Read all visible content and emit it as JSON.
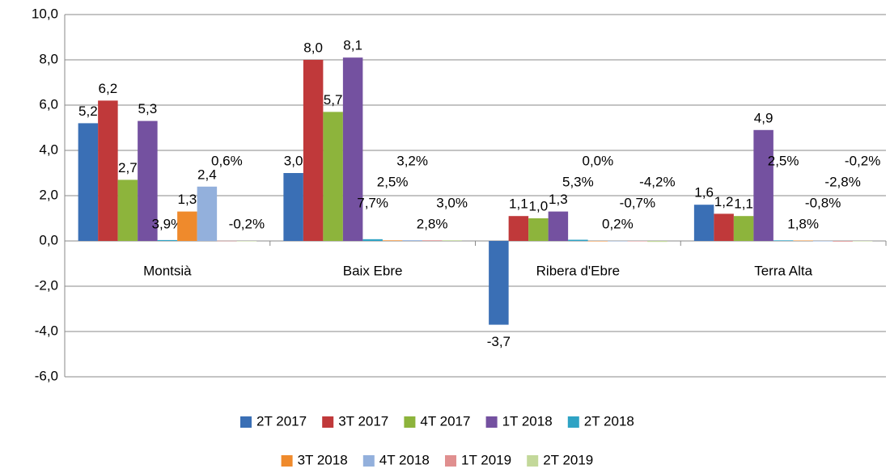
{
  "chart_data": {
    "type": "bar",
    "categories": [
      "Montsià",
      "Baix Ebre",
      "Ribera d'Ebre",
      "Terra Alta"
    ],
    "ylim": [
      -6,
      10
    ],
    "yticks": [
      {
        "value": -6,
        "label": "-6,0"
      },
      {
        "value": -4,
        "label": "-4,0"
      },
      {
        "value": -2,
        "label": "-2,0"
      },
      {
        "value": 0,
        "label": "0,0"
      },
      {
        "value": 2,
        "label": "2,0"
      },
      {
        "value": 4,
        "label": "4,0"
      },
      {
        "value": 6,
        "label": "6,0"
      },
      {
        "value": 8,
        "label": "8,0"
      },
      {
        "value": 10,
        "label": "10,0"
      }
    ],
    "grid": true,
    "legend": "bottom",
    "series": [
      {
        "name": "2T 2017",
        "color": "#3a6fb5",
        "values": [
          5.2,
          3.0,
          -3.7,
          1.6
        ],
        "value_labels": [
          "5,2",
          "3,0",
          "-3,7",
          "1,6"
        ]
      },
      {
        "name": "3T 2017",
        "color": "#c0393a",
        "values": [
          6.2,
          8.0,
          1.1,
          1.2
        ],
        "value_labels": [
          "6,2",
          "8,0",
          "1,1",
          "1,2"
        ]
      },
      {
        "name": "4T 2017",
        "color": "#8db43c",
        "values": [
          2.7,
          5.7,
          1.0,
          1.1
        ],
        "value_labels": [
          "2,7",
          "5,7",
          "1,0",
          "1,1"
        ]
      },
      {
        "name": "1T 2018",
        "color": "#7451a0",
        "values": [
          5.3,
          8.1,
          1.3,
          4.9
        ],
        "value_labels": [
          "5,3",
          "8,1",
          "1,3",
          "4,9"
        ]
      },
      {
        "name": "2T 2018",
        "color": "#2fa3c4",
        "values": [
          0.039,
          0.077,
          0.053,
          0.025
        ],
        "value_labels": [
          "3,9%",
          "7,7%",
          "5,3%",
          "2,5%"
        ]
      },
      {
        "name": "3T 2018",
        "color": "#ef8a2c",
        "values": [
          1.3,
          0.025,
          0.0,
          0.018
        ],
        "value_labels": [
          "1,3",
          "2,5%",
          "0,0%",
          "1,8%"
        ]
      },
      {
        "name": "4T 2018",
        "color": "#93b0dc",
        "values": [
          2.4,
          0.032,
          0.002,
          -0.008
        ],
        "value_labels": [
          "2,4",
          "3,2%",
          "0,2%",
          "-0,8%"
        ]
      },
      {
        "name": "1T 2019",
        "color": "#e08f8f",
        "values": [
          0.006,
          0.028,
          -0.007,
          -0.028
        ],
        "value_labels": [
          "0,6%",
          "2,8%",
          "-0,7%",
          "-2,8%"
        ]
      },
      {
        "name": "2T 2019",
        "color": "#c3d89a",
        "values": [
          -0.002,
          0.03,
          -0.042,
          -0.002
        ],
        "value_labels": [
          "-0,2%",
          "3,0%",
          "-4,2%",
          "-0,2%"
        ]
      }
    ]
  }
}
